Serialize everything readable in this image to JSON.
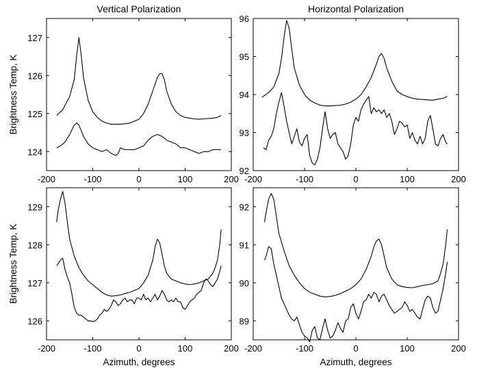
{
  "chart_data": [
    {
      "type": "line",
      "title": "Vertical Polarization",
      "xlabel": "",
      "ylabel": "Brightness Temp, K",
      "xlim": [
        -200,
        200
      ],
      "ylim": [
        123.5,
        127.5
      ],
      "xticks": [
        -200,
        -100,
        0,
        100,
        200
      ],
      "yticks": [
        124,
        125,
        126,
        127
      ],
      "grid": false,
      "series": [
        {
          "x": [
            -178,
            -165,
            -150,
            -140,
            -135,
            -130,
            -125,
            -120,
            -110,
            -100,
            -90,
            -80,
            -70,
            -60,
            -50,
            -40,
            -30,
            -20,
            -10,
            0,
            10,
            20,
            30,
            40,
            45,
            50,
            55,
            60,
            70,
            80,
            90,
            100,
            110,
            120,
            130,
            140,
            150,
            160,
            170,
            178
          ],
          "values": [
            124.95,
            125.1,
            125.45,
            125.9,
            126.5,
            127.0,
            126.55,
            125.95,
            125.35,
            125.05,
            124.9,
            124.8,
            124.75,
            124.72,
            124.72,
            124.72,
            124.73,
            124.75,
            124.8,
            124.85,
            125.0,
            125.25,
            125.6,
            125.95,
            126.05,
            126.05,
            125.9,
            125.6,
            125.25,
            125.05,
            124.95,
            124.9,
            124.88,
            124.86,
            124.85,
            124.86,
            124.87,
            124.88,
            124.9,
            124.95
          ]
        },
        {
          "x": [
            -178,
            -170,
            -160,
            -150,
            -140,
            -135,
            -130,
            -125,
            -120,
            -110,
            -100,
            -90,
            -80,
            -70,
            -60,
            -50,
            -45,
            -40,
            -30,
            -20,
            -10,
            0,
            10,
            20,
            30,
            40,
            50,
            60,
            70,
            80,
            90,
            100,
            110,
            120,
            130,
            140,
            150,
            160,
            170,
            178
          ],
          "values": [
            124.1,
            124.15,
            124.25,
            124.45,
            124.7,
            124.75,
            124.7,
            124.55,
            124.4,
            124.2,
            124.1,
            124.05,
            124.0,
            124.05,
            123.95,
            123.9,
            123.95,
            124.1,
            124.05,
            124.05,
            124.05,
            124.1,
            124.15,
            124.3,
            124.4,
            124.45,
            124.4,
            124.3,
            124.25,
            124.2,
            124.1,
            124.1,
            124.05,
            124.0,
            123.95,
            124.0,
            124.0,
            124.05,
            124.05,
            124.05
          ]
        }
      ]
    },
    {
      "type": "line",
      "title": "Horizontal Polarization",
      "xlabel": "",
      "ylabel": "",
      "xlim": [
        -200,
        200
      ],
      "ylim": [
        92,
        96
      ],
      "xticks": [
        -200,
        -100,
        0,
        100,
        200
      ],
      "yticks": [
        92,
        93,
        94,
        95,
        96
      ],
      "grid": false,
      "series": [
        {
          "x": [
            -183,
            -170,
            -160,
            -150,
            -145,
            -140,
            -135,
            -130,
            -125,
            -120,
            -110,
            -100,
            -90,
            -80,
            -70,
            -60,
            -50,
            -40,
            -30,
            -20,
            -10,
            0,
            10,
            20,
            30,
            40,
            45,
            50,
            55,
            60,
            70,
            80,
            90,
            100,
            110,
            120,
            130,
            140,
            150,
            160,
            170,
            178
          ],
          "values": [
            93.93,
            94.05,
            94.2,
            94.55,
            94.95,
            95.5,
            95.95,
            95.75,
            95.2,
            94.7,
            94.25,
            94.0,
            93.85,
            93.78,
            93.72,
            93.7,
            93.7,
            93.71,
            93.72,
            93.75,
            93.8,
            93.88,
            94.0,
            94.2,
            94.45,
            94.8,
            95.0,
            95.08,
            94.95,
            94.7,
            94.35,
            94.1,
            94.0,
            93.95,
            93.9,
            93.88,
            93.87,
            93.86,
            93.85,
            93.88,
            93.9,
            93.95
          ]
        },
        {
          "x": [
            -180,
            -175,
            -170,
            -165,
            -160,
            -155,
            -150,
            -145,
            -140,
            -135,
            -130,
            -125,
            -120,
            -115,
            -110,
            -105,
            -100,
            -95,
            -90,
            -85,
            -80,
            -75,
            -70,
            -65,
            -60,
            -55,
            -50,
            -45,
            -40,
            -35,
            -30,
            -25,
            -20,
            -15,
            -10,
            -5,
            0,
            5,
            10,
            15,
            20,
            25,
            30,
            35,
            40,
            45,
            50,
            55,
            60,
            65,
            70,
            75,
            80,
            85,
            90,
            95,
            100,
            105,
            110,
            115,
            120,
            125,
            130,
            135,
            140,
            145,
            150,
            155,
            160,
            165,
            170,
            175,
            178
          ],
          "values": [
            92.6,
            92.55,
            92.8,
            92.9,
            93.1,
            93.5,
            93.8,
            94.05,
            93.7,
            93.3,
            93.0,
            92.7,
            92.9,
            93.1,
            92.75,
            92.65,
            92.85,
            92.95,
            92.4,
            92.2,
            92.15,
            92.3,
            92.6,
            93.1,
            93.55,
            93.1,
            92.85,
            92.95,
            93.0,
            92.7,
            92.6,
            92.5,
            92.3,
            92.4,
            92.7,
            93.2,
            93.4,
            93.3,
            93.6,
            93.75,
            93.85,
            93.95,
            93.5,
            93.65,
            93.55,
            93.6,
            93.5,
            93.6,
            93.4,
            93.5,
            93.3,
            92.95,
            93.1,
            93.3,
            93.25,
            93.15,
            93.2,
            92.85,
            93.0,
            92.8,
            92.7,
            92.9,
            92.7,
            92.85,
            93.3,
            93.45,
            93.1,
            92.7,
            92.65,
            92.85,
            92.95,
            92.75,
            92.7
          ]
        }
      ]
    },
    {
      "type": "line",
      "title": "",
      "xlabel": "Azimuth, degrees",
      "ylabel": "Brightness Temp, K",
      "xlim": [
        -200,
        200
      ],
      "ylim": [
        125.5,
        129.5
      ],
      "xticks": [
        -200,
        -100,
        0,
        100,
        200
      ],
      "yticks": [
        126,
        127,
        128,
        129
      ],
      "grid": false,
      "series": [
        {
          "x": [
            -178,
            -175,
            -170,
            -165,
            -160,
            -155,
            -150,
            -140,
            -130,
            -120,
            -110,
            -100,
            -90,
            -80,
            -70,
            -60,
            -50,
            -40,
            -30,
            -20,
            -10,
            0,
            10,
            20,
            30,
            35,
            40,
            45,
            50,
            55,
            60,
            70,
            80,
            90,
            100,
            110,
            120,
            130,
            140,
            150,
            160,
            165,
            170,
            175,
            178
          ],
          "values": [
            128.6,
            128.9,
            129.2,
            129.4,
            129.1,
            128.6,
            128.15,
            127.7,
            127.4,
            127.2,
            127.05,
            126.95,
            126.85,
            126.75,
            126.68,
            126.65,
            126.66,
            126.68,
            126.72,
            126.75,
            126.8,
            126.85,
            127.0,
            127.2,
            127.6,
            127.95,
            128.15,
            128.05,
            127.75,
            127.45,
            127.25,
            127.1,
            127.05,
            127.0,
            126.97,
            126.95,
            126.97,
            127.0,
            127.05,
            127.1,
            127.25,
            127.4,
            127.6,
            128.0,
            128.4
          ]
        },
        {
          "x": [
            -178,
            -175,
            -170,
            -165,
            -160,
            -155,
            -150,
            -145,
            -140,
            -135,
            -130,
            -125,
            -120,
            -115,
            -110,
            -105,
            -100,
            -95,
            -90,
            -85,
            -80,
            -75,
            -70,
            -65,
            -60,
            -55,
            -50,
            -45,
            -40,
            -35,
            -30,
            -25,
            -20,
            -15,
            -10,
            -5,
            0,
            5,
            10,
            15,
            20,
            25,
            30,
            35,
            40,
            45,
            50,
            55,
            60,
            65,
            70,
            75,
            80,
            85,
            90,
            95,
            100,
            105,
            110,
            115,
            120,
            125,
            130,
            135,
            140,
            145,
            150,
            155,
            160,
            165,
            170,
            175,
            178
          ],
          "values": [
            127.45,
            127.5,
            127.6,
            127.65,
            127.35,
            127.15,
            127.0,
            126.7,
            126.35,
            126.2,
            126.15,
            126.15,
            126.1,
            126.05,
            126.0,
            126.0,
            125.98,
            126.0,
            126.05,
            126.15,
            126.2,
            126.3,
            126.25,
            126.3,
            126.4,
            126.55,
            126.5,
            126.4,
            126.45,
            126.55,
            126.6,
            126.5,
            126.55,
            126.55,
            126.45,
            126.6,
            126.6,
            126.55,
            126.7,
            126.55,
            126.6,
            126.5,
            126.6,
            126.7,
            126.55,
            126.65,
            126.8,
            126.7,
            126.55,
            126.5,
            126.55,
            126.5,
            126.6,
            126.5,
            126.5,
            126.35,
            126.3,
            126.4,
            126.5,
            126.55,
            126.6,
            126.7,
            126.75,
            126.8,
            127.0,
            127.1,
            127.05,
            126.95,
            126.9,
            127.0,
            127.1,
            127.3,
            127.45
          ]
        }
      ]
    },
    {
      "type": "line",
      "title": "",
      "xlabel": "Azimuth, degrees",
      "ylabel": "",
      "xlim": [
        -200,
        200
      ],
      "ylim": [
        88.5,
        92.5
      ],
      "xticks": [
        -200,
        -100,
        0,
        100,
        200
      ],
      "yticks": [
        89,
        90,
        91,
        92
      ],
      "grid": false,
      "series": [
        {
          "x": [
            -178,
            -175,
            -170,
            -165,
            -160,
            -155,
            -150,
            -140,
            -130,
            -120,
            -110,
            -100,
            -90,
            -80,
            -70,
            -60,
            -50,
            -40,
            -30,
            -20,
            -10,
            0,
            10,
            20,
            30,
            35,
            40,
            45,
            50,
            55,
            60,
            70,
            80,
            90,
            100,
            110,
            120,
            130,
            140,
            150,
            160,
            165,
            170,
            175,
            178
          ],
          "values": [
            91.6,
            91.85,
            92.2,
            92.35,
            92.2,
            91.75,
            91.3,
            90.85,
            90.45,
            90.2,
            90.0,
            89.85,
            89.75,
            89.7,
            89.65,
            89.63,
            89.64,
            89.67,
            89.72,
            89.78,
            89.85,
            89.95,
            90.1,
            90.35,
            90.7,
            90.95,
            91.1,
            91.15,
            91.0,
            90.7,
            90.4,
            90.1,
            89.95,
            89.9,
            89.88,
            89.87,
            89.9,
            89.93,
            89.95,
            89.98,
            90.05,
            90.25,
            90.5,
            91.0,
            91.4
          ]
        },
        {
          "x": [
            -178,
            -175,
            -170,
            -165,
            -160,
            -155,
            -150,
            -145,
            -140,
            -135,
            -130,
            -125,
            -120,
            -115,
            -110,
            -105,
            -100,
            -95,
            -90,
            -85,
            -80,
            -75,
            -70,
            -65,
            -60,
            -55,
            -50,
            -45,
            -40,
            -35,
            -30,
            -25,
            -20,
            -15,
            -10,
            -5,
            0,
            5,
            10,
            15,
            20,
            25,
            30,
            35,
            40,
            45,
            50,
            55,
            60,
            65,
            70,
            75,
            80,
            85,
            90,
            95,
            100,
            105,
            110,
            115,
            120,
            125,
            130,
            135,
            140,
            145,
            150,
            155,
            160,
            165,
            170,
            175,
            178
          ],
          "values": [
            90.6,
            90.7,
            90.95,
            90.9,
            90.5,
            90.2,
            89.9,
            89.6,
            89.45,
            89.3,
            89.15,
            89.05,
            89.0,
            89.1,
            88.9,
            88.7,
            88.6,
            88.55,
            88.45,
            88.75,
            88.85,
            88.55,
            88.5,
            88.8,
            89.05,
            88.75,
            88.55,
            88.6,
            88.75,
            88.95,
            88.8,
            88.7,
            89.0,
            89.05,
            89.35,
            89.45,
            89.2,
            89.05,
            89.25,
            89.5,
            89.55,
            89.7,
            89.6,
            89.75,
            89.7,
            89.5,
            89.65,
            89.7,
            89.55,
            89.4,
            89.3,
            89.2,
            89.25,
            89.3,
            89.35,
            89.5,
            89.4,
            89.25,
            89.3,
            89.2,
            89.1,
            89.05,
            89.3,
            89.55,
            89.65,
            89.6,
            89.35,
            89.2,
            89.25,
            89.55,
            89.85,
            90.25,
            90.55
          ]
        }
      ]
    }
  ]
}
